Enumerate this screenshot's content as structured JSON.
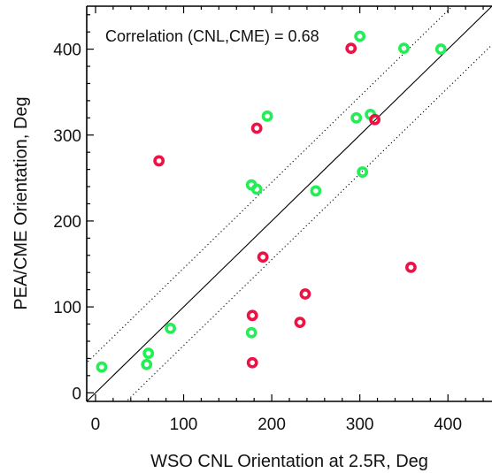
{
  "chart_data": {
    "type": "scatter",
    "xlabel": "WSO CNL Orientation at 2.5R, Deg",
    "ylabel": "PEA/CME Orientation, Deg",
    "annotation": "Correlation (CNL,CME) = 0.68",
    "xlim": [
      -10,
      450
    ],
    "ylim": [
      -10,
      450
    ],
    "xticks": [
      0,
      100,
      200,
      300,
      400
    ],
    "yticks": [
      0,
      100,
      200,
      300,
      400
    ],
    "grid": false,
    "reference_lines": [
      {
        "style": "solid",
        "slope": 1,
        "intercept": 0
      },
      {
        "style": "dotted",
        "slope": 1,
        "intercept": 45
      },
      {
        "style": "dotted",
        "slope": 1,
        "intercept": -45
      }
    ],
    "colors": {
      "green": "#22ee55",
      "red": "#ee1144",
      "axis": "#000000"
    },
    "series": [
      {
        "color": "green",
        "points": [
          [
            7,
            30
          ],
          [
            58,
            33
          ],
          [
            60,
            46
          ],
          [
            85,
            75
          ],
          [
            177,
            70
          ],
          [
            177,
            242
          ],
          [
            183,
            237
          ],
          [
            195,
            322
          ],
          [
            250,
            235
          ],
          [
            296,
            320
          ],
          [
            300,
            415
          ],
          [
            303,
            257
          ],
          [
            312,
            324
          ],
          [
            350,
            401
          ],
          [
            392,
            400
          ]
        ]
      },
      {
        "color": "red",
        "points": [
          [
            72,
            270
          ],
          [
            178,
            35
          ],
          [
            178,
            90
          ],
          [
            183,
            308
          ],
          [
            190,
            158
          ],
          [
            232,
            82
          ],
          [
            238,
            115
          ],
          [
            290,
            401
          ],
          [
            317,
            318
          ],
          [
            358,
            146
          ]
        ]
      }
    ]
  }
}
